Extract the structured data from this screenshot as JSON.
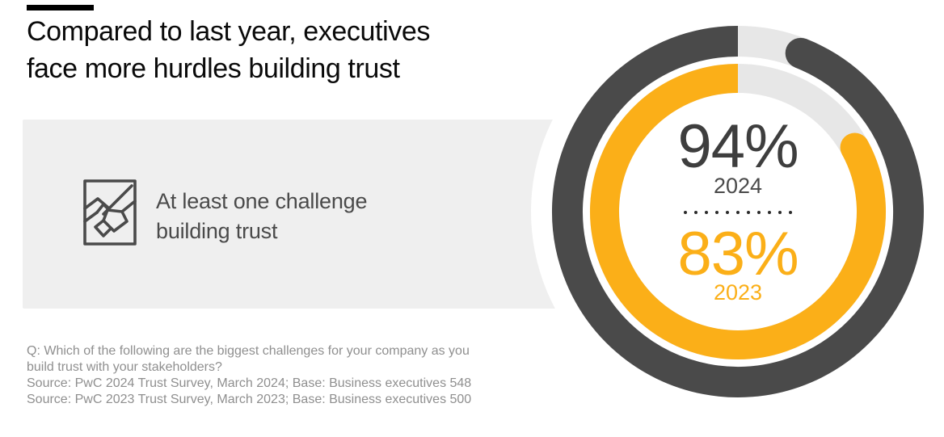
{
  "header": {
    "title_lines": [
      "Compared to last year, executives",
      "face more hurdles building trust"
    ]
  },
  "callout": {
    "icon": "handshake-icon",
    "text_lines": [
      "At least one challenge",
      "building trust"
    ]
  },
  "chart_data": {
    "type": "donut",
    "title": "Compared to last year, executives face more hurdles building trust",
    "annotation": "At least one challenge building trust",
    "max": 100,
    "direction": "clockwise",
    "gap_position": "top",
    "track_color": "#E7E7E7",
    "series": [
      {
        "name": "2024",
        "value": 94,
        "label": "94%",
        "color": "#4A4A4A",
        "ring": "outer"
      },
      {
        "name": "2023",
        "value": 83,
        "label": "83%",
        "color": "#FBAF18",
        "ring": "inner"
      }
    ]
  },
  "footnote": {
    "lines": [
      "Q: Which of the following are the biggest challenges for your company as you",
      "build trust with your stakeholders?",
      "Source: PwC 2024 Trust Survey, March 2024; Base: Business executives 548",
      "Source: PwC 2023 Trust Survey, March 2023; Base: Business executives 500"
    ]
  },
  "colors": {
    "title_text": "#0A0A0A",
    "ring_2024": "#4A4A4A",
    "ring_2023": "#FBAF18",
    "ring_track": "#E7E7E7",
    "callout_bg": "#EFEFEF",
    "callout_text": "#4A4A4A",
    "footnote_text": "#8F8F8F"
  }
}
